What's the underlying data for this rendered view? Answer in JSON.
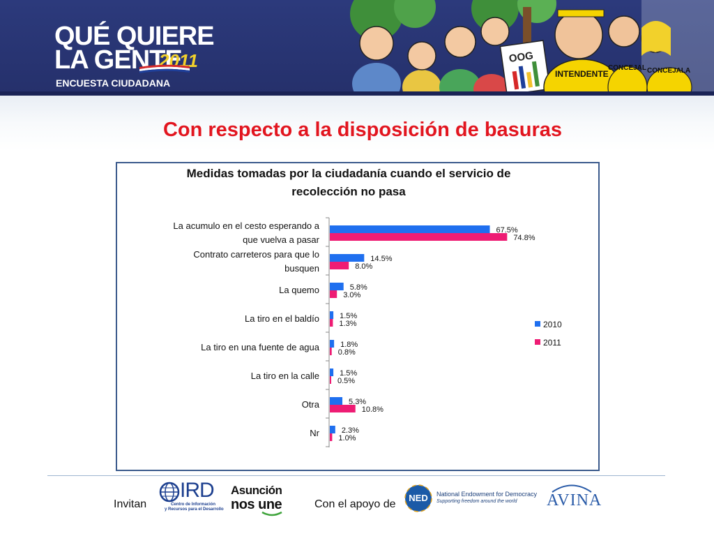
{
  "header": {
    "logo_line1": "QUÉ QUIERE",
    "logo_line2": "LA GENTE",
    "logo_year": "2011",
    "logo_subtitle": "ENCUESTA CIUDADANA",
    "illustration_texts": [
      "OOG",
      "INTENDENTE",
      "CONCEJAL",
      "CONCEJALA"
    ]
  },
  "slide": {
    "title": "Con respecto a la disposición de basuras"
  },
  "chart_data": {
    "type": "bar",
    "orientation": "horizontal",
    "title": "Medidas tomadas por la ciudadanía cuando el servicio de recolección no pasa",
    "title_lines": [
      "Medidas tomadas por la ciudadanía cuando el servicio de",
      "recolección no pasa"
    ],
    "categories": [
      "La acumulo en el cesto esperando a que vuelva a pasar",
      "Contrato carreteros para que lo busquen",
      "La quemo",
      "La tiro en el baldío",
      "La tiro en una fuente de agua",
      "La tiro en la calle",
      "Otra",
      "Nr"
    ],
    "category_lines": [
      [
        "La acumulo en el cesto esperando a",
        "que vuelva a pasar"
      ],
      [
        "Contrato carreteros para que lo",
        "busquen"
      ],
      [
        "La quemo"
      ],
      [
        "La tiro en el baldío"
      ],
      [
        "La tiro en una fuente de agua"
      ],
      [
        "La tiro en la calle"
      ],
      [
        "Otra"
      ],
      [
        "Nr"
      ]
    ],
    "series": [
      {
        "name": "2010",
        "color": "#1f6fef",
        "values": [
          67.5,
          14.5,
          5.8,
          1.5,
          1.8,
          1.5,
          5.3,
          2.3
        ],
        "labels": [
          "67.5%",
          "14.5%",
          "5.8%",
          "1.5%",
          "1.8%",
          "1.5%",
          "5.3%",
          "2.3%"
        ]
      },
      {
        "name": "2011",
        "color": "#ee1c74",
        "values": [
          74.8,
          8.0,
          3.0,
          1.3,
          0.8,
          0.5,
          10.8,
          1.0
        ],
        "labels": [
          "74.8%",
          "8.0%",
          "3.0%",
          "1.3%",
          "0.8%",
          "0.5%",
          "10.8%",
          "1.0%"
        ]
      }
    ],
    "xlim": [
      0,
      100
    ],
    "unit": "%",
    "grid": false,
    "legend_position": "right"
  },
  "footer": {
    "invitan": "Invitan",
    "con_apoyo": "Con el apoyo de",
    "ird_name": "IRD",
    "ird_desc_line1": "Centro de Información",
    "ird_desc_line2": "y Recursos para el Desarrollo",
    "asuncion_line1": "Asunción",
    "asuncion_line2": "nos une",
    "ned_badge": "NED",
    "ned_name": "National Endowment for Democracy",
    "ned_tagline": "Supporting freedom around the world",
    "avina": "AVINA"
  },
  "colors": {
    "header_bg": "#2c3a7c",
    "title_red": "#e2151f",
    "frame_border": "#3b5a8c",
    "series_2010": "#1f6fef",
    "series_2011": "#ee1c74"
  }
}
